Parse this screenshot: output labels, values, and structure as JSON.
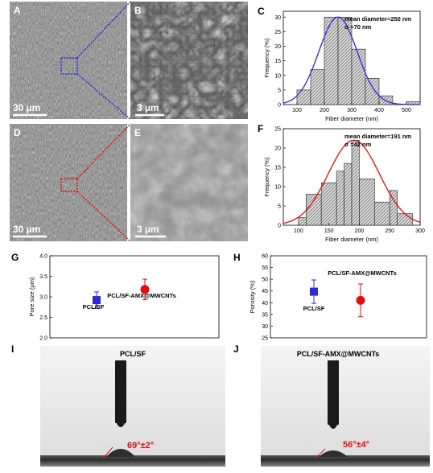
{
  "panels": {
    "A": {
      "letter": "A",
      "scale": "30 µm"
    },
    "B": {
      "letter": "B",
      "scale": "3 µm"
    },
    "C": {
      "letter": "C"
    },
    "D": {
      "letter": "D",
      "scale": "30 µm"
    },
    "E": {
      "letter": "E",
      "scale": "3 µm"
    },
    "F": {
      "letter": "F"
    },
    "G": {
      "letter": "G"
    },
    "H": {
      "letter": "H"
    },
    "I": {
      "letter": "I",
      "title": "PCL/SF",
      "angle": "69°±2°"
    },
    "J": {
      "letter": "J",
      "title": "PCL/SF-AMX@MWCNTs",
      "angle": "56°±4°"
    }
  },
  "colors": {
    "blue": "#2b2bd6",
    "red": "#e01010",
    "bar_fill": "#cfcfcf",
    "sem_dark": "#3a3a3a",
    "sem_light": "#9a9a9a"
  },
  "chart_data": [
    {
      "id": "C",
      "type": "bar",
      "xlabel": "Fiber diameter (nm)",
      "ylabel": "Frequency (%)",
      "xlim": [
        50,
        550
      ],
      "ylim": [
        0,
        32
      ],
      "xticks": [
        100,
        200,
        300,
        400,
        500
      ],
      "yticks": [
        0,
        5,
        10,
        15,
        20,
        25,
        30
      ],
      "bins": [
        [
          100,
          150
        ],
        [
          150,
          200
        ],
        [
          200,
          250
        ],
        [
          250,
          300
        ],
        [
          300,
          350
        ],
        [
          350,
          400
        ],
        [
          400,
          450
        ],
        [
          450,
          500
        ],
        [
          500,
          550
        ]
      ],
      "values": [
        5,
        12,
        30,
        30,
        19,
        9,
        3,
        0,
        1
      ],
      "fit": {
        "mean": 250,
        "sigma": 70,
        "peak": 30,
        "color": "blue"
      },
      "annotation_lines": [
        "mean diameter=250 nm",
        "σ =70 nm"
      ]
    },
    {
      "id": "F",
      "type": "bar",
      "xlabel": "Fiber diameter (nm)",
      "ylabel": "Frequency (%)",
      "xlim": [
        75,
        300
      ],
      "ylim": [
        0,
        25
      ],
      "xticks": [
        100,
        150,
        200,
        250,
        300
      ],
      "yticks": [
        0,
        5,
        10,
        15,
        20,
        25
      ],
      "bins": [
        [
          100,
          112.5
        ],
        [
          112.5,
          137.5
        ],
        [
          137.5,
          162.5
        ],
        [
          162.5,
          175
        ],
        [
          175,
          187.5
        ],
        [
          187.5,
          200
        ],
        [
          200,
          225
        ],
        [
          225,
          250
        ],
        [
          250,
          262.5
        ],
        [
          262.5,
          287.5
        ]
      ],
      "values": [
        2,
        8,
        11,
        14,
        16,
        22,
        12,
        6,
        9,
        3
      ],
      "fit": {
        "mean": 191,
        "sigma": 42,
        "peak": 22,
        "color": "red"
      },
      "annotation_lines": [
        "mean diameter=191 nm",
        "σ =42 nm"
      ]
    },
    {
      "id": "G",
      "type": "scatter",
      "xlabel": "",
      "ylabel": "Pore size (μm)",
      "ylim": [
        2.0,
        4.0
      ],
      "yticks": [
        "2.0",
        "2.5",
        "3.0",
        "3.5",
        "4.0"
      ],
      "series": [
        {
          "name": "PCL/SF",
          "y": 2.92,
          "err": 0.2,
          "marker": "square",
          "color": "blue"
        },
        {
          "name": "PCL/SF-AMX@MWCNTs",
          "y": 3.18,
          "err": 0.25,
          "marker": "circle",
          "color": "red"
        }
      ]
    },
    {
      "id": "H",
      "type": "scatter",
      "xlabel": "",
      "ylabel": "Porosity (%)",
      "ylim": [
        25,
        60
      ],
      "yticks": [
        "25",
        "30",
        "35",
        "40",
        "45",
        "50",
        "55",
        "60"
      ],
      "series": [
        {
          "name": "PCL/SF",
          "y": 44.7,
          "err": 5,
          "marker": "square",
          "color": "blue"
        },
        {
          "name": "PCL/SF-AMX@MWCNTs",
          "y": 41,
          "err": 7,
          "marker": "circle",
          "color": "red"
        }
      ]
    }
  ]
}
